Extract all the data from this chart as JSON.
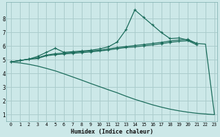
{
  "xlabel": "Humidex (Indice chaleur)",
  "bg_color": "#cce8e8",
  "grid_color": "#aacccc",
  "line_color": "#1a6b5a",
  "xlim": [
    -0.5,
    23.3
  ],
  "ylim": [
    0.5,
    9.2
  ],
  "xticks": [
    0,
    1,
    2,
    3,
    4,
    5,
    6,
    7,
    8,
    9,
    10,
    11,
    12,
    13,
    14,
    15,
    16,
    17,
    18,
    19,
    20,
    21,
    22,
    23
  ],
  "yticks": [
    1,
    2,
    3,
    4,
    5,
    6,
    7,
    8
  ],
  "line1_x": [
    0,
    1,
    2,
    3,
    4,
    5,
    6,
    7,
    8,
    9,
    10,
    11,
    12,
    13,
    14,
    15,
    16,
    17,
    18,
    19,
    20,
    21,
    22,
    23
  ],
  "line1_y": [
    4.85,
    4.95,
    5.05,
    5.25,
    5.55,
    5.85,
    5.55,
    5.6,
    5.65,
    5.7,
    5.8,
    5.95,
    6.3,
    7.2,
    8.65,
    8.1,
    7.55,
    7.0,
    6.55,
    6.6,
    6.45,
    6.2,
    null,
    null
  ],
  "line2_x": [
    0,
    1,
    2,
    3,
    4,
    5,
    6,
    7,
    8,
    9,
    10,
    11,
    12,
    13,
    14,
    15,
    16,
    17,
    18,
    19,
    20,
    21
  ],
  "line2_y": [
    4.85,
    4.95,
    5.05,
    5.15,
    5.35,
    5.45,
    5.5,
    5.55,
    5.6,
    5.65,
    5.7,
    5.8,
    5.9,
    5.97,
    6.05,
    6.12,
    6.2,
    6.28,
    6.38,
    6.45,
    6.5,
    6.2
  ],
  "line3_x": [
    0,
    1,
    2,
    3,
    4,
    5,
    6,
    7,
    8,
    9,
    10,
    11,
    12,
    13,
    14,
    15,
    16,
    17,
    18,
    19,
    20,
    21
  ],
  "line3_y": [
    4.85,
    4.95,
    5.05,
    5.1,
    5.3,
    5.38,
    5.43,
    5.48,
    5.53,
    5.58,
    5.65,
    5.72,
    5.82,
    5.9,
    5.95,
    6.02,
    6.1,
    6.18,
    6.28,
    6.35,
    6.4,
    6.1
  ],
  "line4_x": [
    0,
    1,
    2,
    3,
    4,
    5,
    6,
    7,
    8,
    9,
    10,
    11,
    12,
    13,
    14,
    15,
    16,
    17,
    18,
    19,
    20,
    21,
    22,
    23
  ],
  "line4_y": [
    4.85,
    4.78,
    4.68,
    4.55,
    4.38,
    4.2,
    3.98,
    3.75,
    3.52,
    3.28,
    3.05,
    2.82,
    2.6,
    2.35,
    2.12,
    1.92,
    1.72,
    1.55,
    1.4,
    1.28,
    1.18,
    1.1,
    1.05,
    1.0
  ],
  "line5_x": [
    21,
    22,
    23
  ],
  "line5_y": [
    6.2,
    6.15,
    1.05
  ]
}
